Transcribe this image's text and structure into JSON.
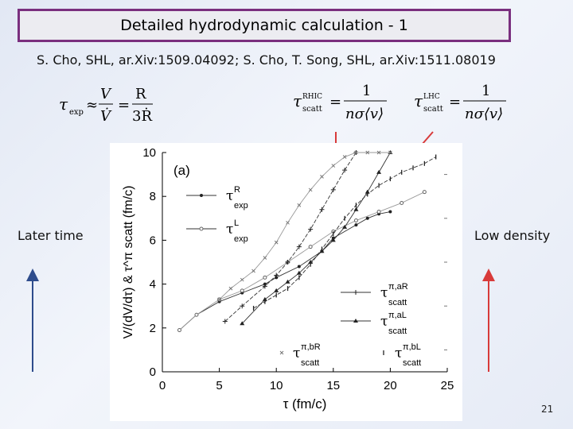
{
  "slide": {
    "title": "Detailed  hydrodynamic calculation - 1",
    "references": "S. Cho, SHL, ar.Xiv:1509.04092; S. Cho, T. Song, SHL, ar.Xiv:1511.08019",
    "left_label": "Later time",
    "right_label": "Low density",
    "page_number": "21"
  },
  "formulas": {
    "tau_exp": "τ",
    "tau_exp_sub": "exp",
    "approx": "≈",
    "V": "V",
    "Vdot": "V̇",
    "R": "R",
    "threeR": "3Ṙ",
    "eq": "=",
    "tau_scatt": "τ",
    "rhic_sup": "RHIC",
    "lhc_sup": "LHC",
    "scatt_sub": "scatt",
    "one": "1",
    "n_sigma_v": "nσ⟨v⟩"
  },
  "colors": {
    "title_border": "#7a2f7e",
    "arrow_blue": "#2e4c8c",
    "arrow_red": "#d83a3a"
  },
  "chart_data": {
    "type": "line",
    "panel_label": "(a)",
    "xlabel": "τ (fm/c)",
    "ylabel": "V/(dV/dτ) & τ^π scatt (fm/c)",
    "xlim": [
      0,
      25
    ],
    "ylim": [
      0,
      10
    ],
    "xticks": [
      0,
      5,
      10,
      15,
      20,
      25
    ],
    "yticks": [
      0,
      2,
      4,
      6,
      8,
      10
    ],
    "legend": [
      {
        "name": "τR exp",
        "main": "τ",
        "sup": "R",
        "sub": "exp",
        "marker": "dot"
      },
      {
        "name": "τL exp",
        "main": "τ",
        "sup": "L",
        "sub": "exp",
        "marker": "open-circle"
      },
      {
        "name": "τπ,aR scatt",
        "main": "τ",
        "sup": "π,aR",
        "sub": "scatt",
        "marker": "plus"
      },
      {
        "name": "τπ,aL scatt",
        "main": "τ",
        "sup": "π,aL",
        "sub": "scatt",
        "marker": "triangle"
      },
      {
        "name": "τπ,bR scatt",
        "main": "τ",
        "sup": "π,bR",
        "sub": "scatt",
        "marker": "x"
      },
      {
        "name": "τπ,bL scatt",
        "main": "τ",
        "sup": "π,bL",
        "sub": "scatt",
        "marker": "bar"
      }
    ],
    "series": [
      {
        "name": "τR exp",
        "marker": "dot",
        "x": [
          1.5,
          3,
          5,
          7,
          9,
          10,
          12,
          14,
          15,
          17,
          18,
          19,
          20
        ],
        "y": [
          1.9,
          2.6,
          3.2,
          3.6,
          4.0,
          4.3,
          4.8,
          5.5,
          6.1,
          6.7,
          7.0,
          7.2,
          7.3
        ]
      },
      {
        "name": "τL exp",
        "marker": "open-circle",
        "x": [
          1.5,
          3,
          5,
          7,
          9,
          11,
          13,
          15,
          17,
          19,
          21,
          23
        ],
        "y": [
          1.9,
          2.6,
          3.3,
          3.7,
          4.3,
          5.0,
          5.7,
          6.4,
          6.9,
          7.3,
          7.7,
          8.2
        ]
      },
      {
        "name": "τπ,aR scatt",
        "marker": "plus",
        "x": [
          5.5,
          7,
          9,
          10,
          11,
          12,
          13,
          14,
          15,
          16,
          17
        ],
        "y": [
          2.3,
          3.0,
          3.9,
          4.4,
          5.0,
          5.7,
          6.5,
          7.4,
          8.3,
          9.2,
          10.0
        ]
      },
      {
        "name": "τπ,aL scatt",
        "marker": "triangle",
        "x": [
          7,
          9,
          10,
          11,
          12,
          13,
          14,
          15,
          16,
          17,
          18,
          19,
          20
        ],
        "y": [
          2.2,
          3.3,
          3.7,
          4.1,
          4.5,
          5.0,
          5.5,
          6.0,
          6.6,
          7.4,
          8.2,
          9.1,
          10.0
        ]
      },
      {
        "name": "τπ,bR scatt",
        "marker": "x",
        "x": [
          5,
          6,
          7,
          8,
          9,
          10,
          11,
          12,
          13,
          14,
          15,
          16,
          17,
          18,
          19,
          20
        ],
        "y": [
          3.3,
          3.8,
          4.2,
          4.6,
          5.2,
          5.9,
          6.8,
          7.6,
          8.3,
          8.9,
          9.4,
          9.8,
          10.0,
          10.0,
          10.0,
          10.0
        ]
      },
      {
        "name": "τπ,bL scatt",
        "marker": "bar",
        "x": [
          8,
          9,
          10,
          11,
          12,
          13,
          14,
          15,
          16,
          17,
          18,
          19,
          20,
          21,
          22,
          23,
          24
        ],
        "y": [
          2.9,
          3.2,
          3.5,
          3.8,
          4.3,
          4.9,
          5.6,
          6.3,
          7.0,
          7.6,
          8.1,
          8.5,
          8.8,
          9.1,
          9.3,
          9.5,
          9.8
        ]
      }
    ]
  }
}
